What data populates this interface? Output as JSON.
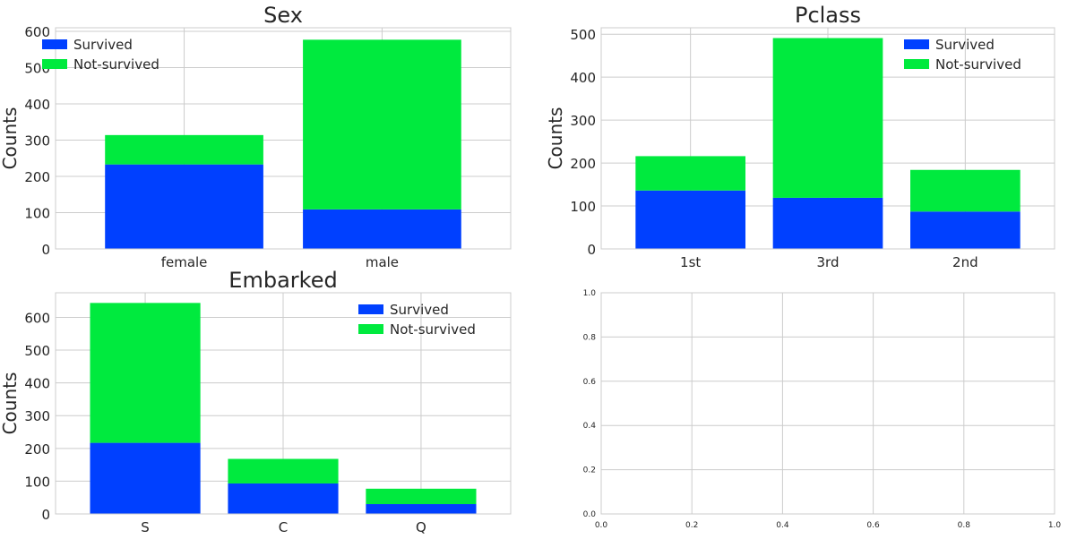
{
  "colors": {
    "survived": "#0040ff",
    "not_survived": "#00ea3e",
    "grid": "#cccccc",
    "text": "#262626"
  },
  "chart_data": [
    {
      "type": "bar",
      "stacked": true,
      "title": "Sex",
      "ylabel": "Counts",
      "xlabel": "",
      "categories": [
        "female",
        "male"
      ],
      "series": [
        {
          "name": "Survived",
          "values": [
            233,
            109
          ]
        },
        {
          "name": "Not-survived",
          "values": [
            81,
            468
          ]
        }
      ],
      "ylim": [
        0,
        610
      ],
      "yticks": [
        0,
        100,
        200,
        300,
        400,
        500,
        600
      ],
      "legend": "top-left",
      "grid": true
    },
    {
      "type": "bar",
      "stacked": true,
      "title": "Pclass",
      "ylabel": "Counts",
      "xlabel": "",
      "categories": [
        "1st",
        "3rd",
        "2nd"
      ],
      "series": [
        {
          "name": "Survived",
          "values": [
            136,
            119,
            87
          ]
        },
        {
          "name": "Not-survived",
          "values": [
            80,
            372,
            97
          ]
        }
      ],
      "ylim": [
        0,
        515
      ],
      "yticks": [
        0,
        100,
        200,
        300,
        400,
        500
      ],
      "legend": "top-right",
      "grid": true
    },
    {
      "type": "bar",
      "stacked": true,
      "title": "Embarked",
      "ylabel": "Counts",
      "xlabel": "",
      "categories": [
        "S",
        "C",
        "Q"
      ],
      "series": [
        {
          "name": "Survived",
          "values": [
            217,
            93,
            30
          ]
        },
        {
          "name": "Not-survived",
          "values": [
            427,
            75,
            47
          ]
        }
      ],
      "ylim": [
        0,
        675
      ],
      "yticks": [
        0,
        100,
        200,
        300,
        400,
        500,
        600
      ],
      "legend": "top-right",
      "grid": true
    },
    {
      "type": "empty",
      "title": "",
      "xlim": [
        0,
        1
      ],
      "ylim": [
        0,
        1
      ],
      "xticks": [
        "0.0",
        "0.2",
        "0.4",
        "0.6",
        "0.8",
        "1.0"
      ],
      "yticks": [
        "0.0",
        "0.2",
        "0.4",
        "0.6",
        "0.8",
        "1.0"
      ],
      "grid": true
    }
  ]
}
